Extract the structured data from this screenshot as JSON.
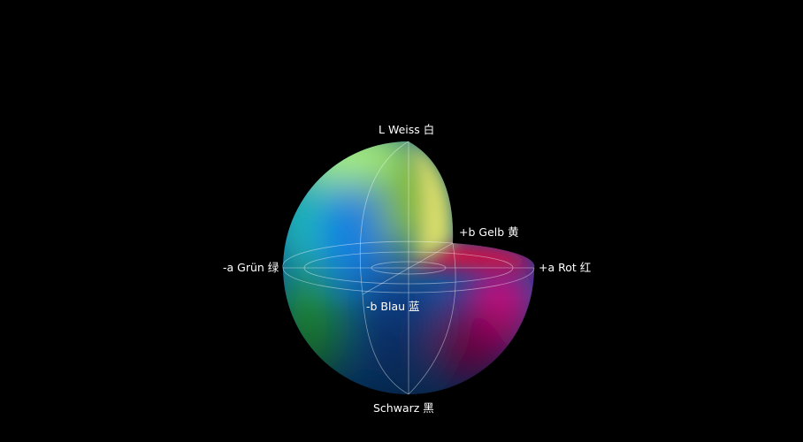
{
  "diagram": {
    "labels": {
      "top": "L Weiss 白",
      "bottom": "Schwarz 黑",
      "plus_a": "+a Rot 红",
      "minus_a": "-a Grün 绿",
      "plus_b": "+b Gelb 黄",
      "minus_b": "-b Blau 蓝"
    },
    "colors": {
      "background": "#000000",
      "white_top": "#a8f07a",
      "yellow": "#e0e070",
      "red": "#e0103a",
      "magenta": "#c0107a",
      "green": "#1a8a3a",
      "cyan": "#20c0b0",
      "blue": "#1580e0",
      "dark_blue": "#0a3a80",
      "grid_line": "#ffffff"
    }
  }
}
